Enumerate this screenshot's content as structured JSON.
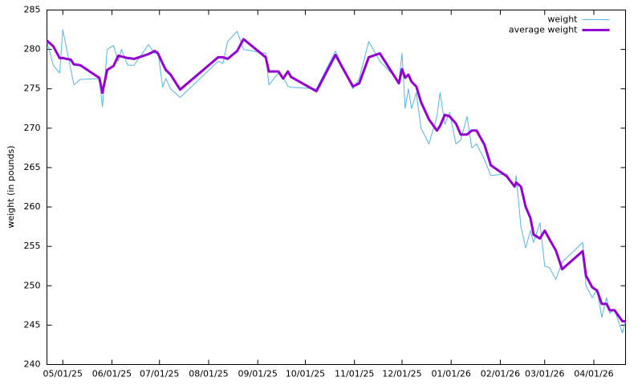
{
  "chart_data": {
    "type": "line",
    "ylabel": "weight (in pounds)",
    "x": [
      "04/21/25",
      "04/25/25",
      "04/29/25",
      "05/01/25",
      "05/06/25",
      "05/08/25",
      "05/12/25",
      "05/24/25",
      "05/26/25",
      "05/29/25",
      "06/02/25",
      "06/05/25",
      "06/07/25",
      "06/11/25",
      "06/15/25",
      "06/24/25",
      "06/28/25",
      "06/30/25",
      "07/03/25",
      "07/05/25",
      "07/08/25",
      "07/14/25",
      "08/07/25",
      "08/10/25",
      "08/13/25",
      "08/19/25",
      "08/23/25",
      "09/06/25",
      "09/08/25",
      "09/14/25",
      "09/17/25",
      "09/20/25",
      "09/22/25",
      "10/08/25",
      "10/20/25",
      "10/31/25",
      "11/04/25",
      "11/10/25",
      "11/17/25",
      "11/29/25",
      "12/01/25",
      "12/03/25",
      "12/05/25",
      "12/07/25",
      "12/10/25",
      "12/13/25",
      "12/18/25",
      "12/23/25",
      "12/25/25",
      "12/28/25",
      "12/31/25",
      "01/04/26",
      "01/07/26",
      "01/11/26",
      "01/14/26",
      "01/17/26",
      "01/22/26",
      "01/26/26",
      "02/05/26",
      "02/10/26",
      "02/11/26",
      "02/14/26",
      "02/17/26",
      "02/20/26",
      "02/22/26",
      "02/26/26",
      "03/01/26",
      "03/04/26",
      "03/08/26",
      "03/12/26",
      "03/25/26",
      "03/27/26",
      "03/31/26",
      "04/03/26",
      "04/06/26",
      "04/09/26",
      "04/11/26",
      "04/14/26",
      "04/19/26",
      "04/21/26"
    ],
    "series": [
      {
        "name": "weight",
        "color": "#56b4e9",
        "width": 1,
        "values": [
          281.0,
          278.0,
          277.0,
          282.5,
          277.5,
          275.5,
          276.2,
          276.3,
          272.7,
          280.0,
          280.5,
          278.5,
          280.0,
          278.0,
          278.0,
          280.6,
          279.5,
          279.8,
          275.2,
          276.3,
          275.0,
          273.9,
          278.5,
          278.2,
          281.0,
          282.3,
          280.0,
          279.5,
          275.5,
          277.0,
          276.5,
          275.3,
          275.2,
          275.0,
          279.8,
          275.0,
          276.3,
          281.0,
          278.5,
          276.0,
          279.5,
          272.5,
          275.0,
          272.5,
          274.5,
          270.0,
          268.0,
          271.5,
          274.5,
          270.5,
          272.0,
          268.0,
          268.5,
          271.5,
          267.5,
          268.0,
          266.0,
          264.0,
          264.2,
          262.5,
          264.0,
          257.5,
          254.8,
          257.0,
          255.5,
          258.0,
          252.5,
          252.3,
          250.8,
          253.0,
          255.5,
          250.0,
          248.5,
          249.5,
          246.0,
          248.5,
          246.5,
          247.0,
          244.0,
          245.5
        ]
      },
      {
        "name": "average weight",
        "color": "#9400d3",
        "width": 3,
        "values": [
          281.1,
          280.4,
          278.9,
          278.9,
          278.7,
          278.1,
          278.0,
          276.4,
          274.5,
          277.4,
          277.9,
          279.2,
          279.1,
          278.9,
          278.8,
          279.4,
          279.8,
          279.5,
          278.2,
          277.4,
          276.8,
          274.9,
          279.0,
          279.0,
          278.8,
          279.8,
          281.3,
          279.0,
          277.2,
          277.2,
          276.3,
          277.2,
          276.5,
          274.7,
          279.3,
          275.3,
          275.7,
          279.0,
          279.5,
          275.7,
          277.5,
          276.4,
          276.8,
          275.9,
          275.3,
          273.3,
          271.1,
          269.7,
          270.3,
          271.7,
          271.5,
          270.6,
          269.2,
          269.2,
          269.7,
          269.7,
          267.9,
          265.3,
          263.9,
          262.6,
          263.1,
          262.6,
          260.0,
          258.6,
          256.5,
          256.0,
          257.0,
          255.9,
          254.5,
          252.1,
          254.4,
          251.3,
          249.8,
          249.4,
          247.7,
          247.7,
          246.9,
          246.9,
          245.5,
          245.5
        ]
      }
    ],
    "xlim": [
      "04/21/25",
      "04/21/26"
    ],
    "xticks": [
      "05/01/25",
      "06/01/25",
      "07/01/25",
      "08/01/25",
      "09/01/25",
      "10/01/25",
      "11/01/25",
      "12/01/25",
      "01/01/26",
      "02/01/26",
      "03/01/26",
      "04/01/26"
    ],
    "ylim": [
      240,
      285
    ],
    "yticks": [
      240,
      245,
      250,
      255,
      260,
      265,
      270,
      275,
      280,
      285
    ],
    "legend": "top-right"
  }
}
